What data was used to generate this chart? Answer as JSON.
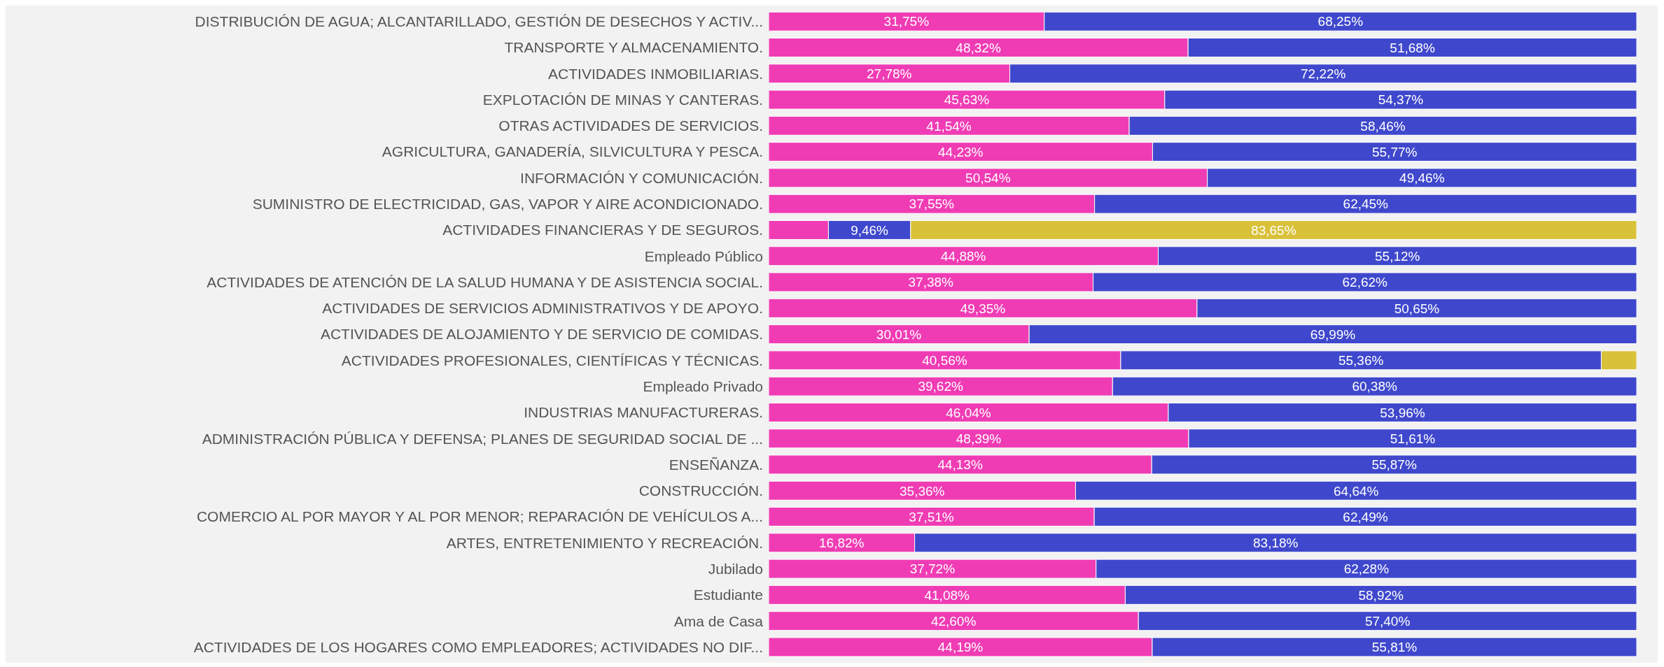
{
  "chart_data": {
    "type": "bar",
    "orientation": "horizontal",
    "stacked": true,
    "tick_labels": "y",
    "xlim": [
      0,
      100
    ],
    "categories": [
      "DISTRIBUCIÓN DE AGUA; ALCANTARILLADO, GESTIÓN DE DESECHOS Y ACTIV...",
      "TRANSPORTE Y ALMACENAMIENTO.",
      "ACTIVIDADES INMOBILIARIAS.",
      "EXPLOTACIÓN DE MINAS Y CANTERAS.",
      "OTRAS ACTIVIDADES DE SERVICIOS.",
      "AGRICULTURA, GANADERÍA, SILVICULTURA Y PESCA.",
      "INFORMACIÓN Y COMUNICACIÓN.",
      "SUMINISTRO DE ELECTRICIDAD, GAS, VAPOR Y AIRE ACONDICIONADO.",
      "ACTIVIDADES FINANCIERAS Y DE SEGUROS.",
      "Empleado Público",
      "ACTIVIDADES DE ATENCIÓN DE LA SALUD HUMANA Y DE ASISTENCIA SOCIAL.",
      "ACTIVIDADES DE SERVICIOS ADMINISTRATIVOS Y DE APOYO.",
      "ACTIVIDADES DE ALOJAMIENTO Y DE SERVICIO DE COMIDAS.",
      "ACTIVIDADES PROFESIONALES, CIENTÍFICAS Y TÉCNICAS.",
      "Empleado Privado",
      "INDUSTRIAS MANUFACTURERAS.",
      "ADMINISTRACIÓN PÚBLICA Y DEFENSA; PLANES DE SEGURIDAD SOCIAL DE ...",
      "ENSEÑANZA.",
      "CONSTRUCCIÓN.",
      "COMERCIO AL POR MAYOR Y AL POR MENOR; REPARACIÓN DE VEHÍCULOS A...",
      "ARTES, ENTRETENIMIENTO Y RECREACIÓN.",
      "Jubilado",
      "Estudiante",
      "Ama de Casa",
      "ACTIVIDADES DE LOS HOGARES COMO EMPLEADORES; ACTIVIDADES NO DIF..."
    ],
    "series": [
      {
        "color": "#f03cb4",
        "values": [
          31.75,
          48.32,
          27.78,
          45.63,
          41.54,
          44.23,
          50.54,
          37.55,
          6.89,
          44.88,
          37.38,
          49.35,
          30.01,
          40.56,
          39.62,
          46.04,
          48.39,
          44.13,
          35.36,
          37.51,
          16.82,
          37.72,
          41.08,
          42.6,
          44.19
        ],
        "value_labels": [
          "31,75%",
          "48,32%",
          "27,78%",
          "45,63%",
          "41,54%",
          "44,23%",
          "50,54%",
          "37,55%",
          null,
          "44,88%",
          "37,38%",
          "49,35%",
          "30,01%",
          "40,56%",
          "39,62%",
          "46,04%",
          "48,39%",
          "44,13%",
          "35,36%",
          "37,51%",
          "16,82%",
          "37,72%",
          "41,08%",
          "42,60%",
          "44,19%"
        ]
      },
      {
        "color": "#3f48cc",
        "values": [
          68.25,
          51.68,
          72.22,
          54.37,
          58.46,
          55.77,
          49.46,
          62.45,
          9.46,
          55.12,
          62.62,
          50.65,
          69.99,
          55.36,
          60.38,
          53.96,
          51.61,
          55.87,
          64.64,
          62.49,
          83.18,
          62.28,
          58.92,
          57.4,
          55.81
        ],
        "value_labels": [
          "68,25%",
          "51,68%",
          "72,22%",
          "54,37%",
          "58,46%",
          "55,77%",
          "49,46%",
          "62,45%",
          "9,46%",
          "55,12%",
          "62,62%",
          "50,65%",
          "69,99%",
          "55,36%",
          "60,38%",
          "53,96%",
          "51,61%",
          "55,87%",
          "64,64%",
          "62,49%",
          "83,18%",
          "62,28%",
          "58,92%",
          "57,40%",
          "55,81%"
        ]
      },
      {
        "color": "#d9c13a",
        "values": [
          null,
          null,
          null,
          null,
          null,
          null,
          null,
          null,
          83.65,
          null,
          null,
          null,
          null,
          4.08,
          null,
          null,
          null,
          null,
          null,
          null,
          null,
          null,
          null,
          null,
          null
        ],
        "value_labels": [
          null,
          null,
          null,
          null,
          null,
          null,
          null,
          null,
          "83,65%",
          null,
          null,
          null,
          null,
          null,
          null,
          null,
          null,
          null,
          null,
          null,
          null,
          null,
          null,
          null,
          null
        ]
      }
    ]
  }
}
